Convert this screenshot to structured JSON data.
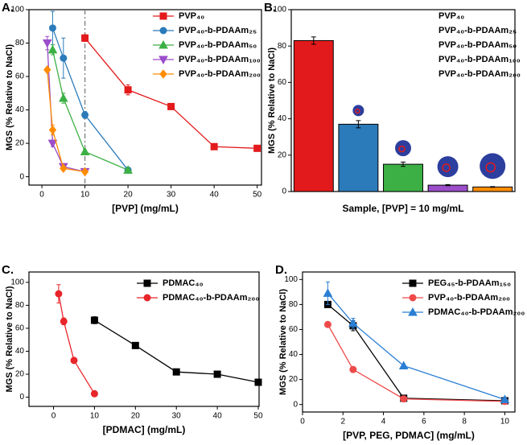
{
  "chart_data": [
    {
      "type": "line",
      "panel": "A.",
      "xlabel": "[PVP] (mg/mL)",
      "ylabel": "MGS (% Relative to NaCl)",
      "xlim": [
        -3,
        51
      ],
      "ylim": [
        -5,
        100
      ],
      "xticks": [
        0,
        10,
        20,
        30,
        40,
        50
      ],
      "yticks": [
        0,
        20,
        40,
        60,
        80,
        100
      ],
      "vline": 10,
      "legend": "upper right",
      "series": [
        {
          "name": "PVP₄₀",
          "color": "#e31a1c",
          "marker": "square",
          "x": [
            10,
            20,
            30,
            40,
            50
          ],
          "values": [
            83,
            52,
            42,
            18,
            17
          ],
          "errors": [
            2,
            3,
            1,
            1,
            1
          ]
        },
        {
          "name": "PVP₄₀-b-PDAAm₂₅",
          "color": "#2b7bba",
          "marker": "circle",
          "x": [
            2.5,
            5,
            10,
            20
          ],
          "values": [
            89,
            71,
            37,
            4
          ],
          "errors": [
            10,
            12,
            2,
            1
          ]
        },
        {
          "name": "PVP₄₀-b-PDAAm₅₀",
          "color": "#3cb044",
          "marker": "triangle-up",
          "x": [
            2.5,
            5,
            10,
            20
          ],
          "values": [
            76,
            47,
            15,
            4
          ],
          "errors": [
            3,
            3,
            1,
            1
          ]
        },
        {
          "name": "PVP₄₀-b-PDAAm₁₀₀",
          "color": "#9b4dca",
          "marker": "triangle-down",
          "x": [
            1.25,
            2.5,
            5,
            10
          ],
          "values": [
            80,
            20,
            6,
            3
          ],
          "errors": [
            4,
            2,
            1,
            1
          ]
        },
        {
          "name": "PVP₄₀-b-PDAAm₂₀₀",
          "color": "#ff8c00",
          "marker": "diamond",
          "x": [
            1.25,
            2.5,
            5,
            10
          ],
          "values": [
            64,
            28,
            5,
            3
          ],
          "errors": [
            1,
            3,
            1,
            1
          ]
        }
      ]
    },
    {
      "type": "bar",
      "panel": "B.",
      "xlabel": "Sample, [PVP] = 10 mg/mL",
      "ylabel": "MGS (% Relative to NaCl)",
      "ylim": [
        0,
        100
      ],
      "yticks": [
        0,
        20,
        40,
        60,
        80,
        100
      ],
      "legend": "upper right",
      "categories": [
        null,
        null,
        null,
        null,
        null
      ],
      "values": [
        83,
        37,
        15,
        3.5,
        2.5
      ],
      "errors": [
        2,
        2,
        1.2,
        0.3,
        0.2
      ],
      "colors": [
        "#e31a1c",
        "#2b7bba",
        "#3cb044",
        "#9b4dca",
        "#ff8c00"
      ],
      "legend_labels": [
        "PVP₄₀",
        "PVP₄₀-b-PDAAm₂₅",
        "PVP₄₀-b-PDAAm₅₀",
        "PVP₄₀-b-PDAAm₁₀₀",
        "PVP₄₀-b-PDAAm₂₀₀"
      ]
    },
    {
      "type": "line",
      "panel": "C.",
      "xlabel": "[PDMAC] (mg/mL)",
      "ylabel": "MGS (% Relative to NaCl)",
      "xlim": [
        -6,
        50.2
      ],
      "ylim": [
        -8,
        109
      ],
      "xticks": [
        0,
        10,
        20,
        30,
        40,
        50
      ],
      "yticks": [
        0,
        20,
        40,
        60,
        80,
        100
      ],
      "legend": "upper right",
      "series": [
        {
          "name": "PDMAC₄₀",
          "color": "#000000",
          "marker": "square",
          "x": [
            10,
            20,
            30,
            40,
            50
          ],
          "values": [
            67,
            45,
            22,
            20,
            13
          ],
          "errors": [
            3,
            2,
            2,
            1,
            1
          ]
        },
        {
          "name": "PDMAC₄₀-b-PDAAm₂₀₀",
          "color": "#e8252a",
          "marker": "circle",
          "x": [
            1.25,
            2.5,
            5,
            10
          ],
          "values": [
            90,
            66,
            32,
            3
          ],
          "errors": [
            8,
            3,
            1,
            0.5
          ]
        }
      ]
    },
    {
      "type": "line",
      "panel": "D.",
      "xlabel": "[PVP, PEG, PDMAC] (mg/mL)",
      "ylabel": "MGS (% Relative to NaCl)",
      "xlim": [
        0,
        10.5
      ],
      "ylim": [
        -6,
        106
      ],
      "xticks": [
        0,
        2,
        4,
        6,
        8,
        10
      ],
      "yticks": [
        0,
        20,
        40,
        60,
        80,
        100
      ],
      "legend": "upper right",
      "series": [
        {
          "name": "PEG₄₅-b-PDAAm₁₅₀",
          "color": "#000000",
          "marker": "square",
          "x": [
            1.25,
            2.5,
            5,
            10
          ],
          "values": [
            80,
            63,
            5,
            3
          ],
          "errors": [
            2,
            4,
            1,
            0.5
          ]
        },
        {
          "name": "PVP₄₀-b-PDAAm₂₀₀",
          "color": "#ee4a4a",
          "marker": "circle",
          "x": [
            1.25,
            2.5,
            5,
            10
          ],
          "values": [
            64,
            28,
            4.5,
            2.5
          ],
          "errors": [
            0.5,
            2,
            1,
            0.5
          ]
        },
        {
          "name": "PDMAC₄₀-b-PDAAm₂₀₀",
          "color": "#2a7fd4",
          "marker": "triangle-up",
          "x": [
            1.25,
            2.5,
            5,
            10
          ],
          "values": [
            89,
            65,
            31,
            4
          ],
          "errors": [
            9,
            4,
            1,
            0.5
          ]
        }
      ]
    }
  ]
}
